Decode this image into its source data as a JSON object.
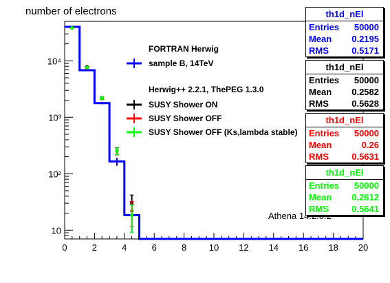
{
  "chart_data": {
    "type": "histogram",
    "title": "number of electrons",
    "x_range": [
      0,
      20
    ],
    "y_range": [
      7,
      50000
    ],
    "y_scale": "log",
    "x_ticks": [
      "0",
      "2",
      "4",
      "6",
      "8",
      "10",
      "12",
      "14",
      "16",
      "18",
      "20"
    ],
    "y_tick_labels": [
      "10",
      "10²",
      "10³",
      "10⁴"
    ],
    "bin_width": 1,
    "series": [
      {
        "name": "sample B, 14TeV",
        "color": "#0000ff",
        "style": "step",
        "bins": [
          0,
          1,
          2,
          3,
          4,
          5,
          6,
          7,
          8,
          9,
          10,
          11,
          12,
          13,
          14,
          15,
          16,
          17,
          18,
          19
        ],
        "values": [
          40000,
          6800,
          1780,
          165,
          18.5,
          0,
          0,
          0,
          0,
          0,
          0,
          0,
          0,
          0,
          0,
          0,
          0,
          0,
          0,
          0
        ]
      },
      {
        "name": "SUSY Shower ON",
        "color": "#000000",
        "style": "points",
        "x": [
          0.5,
          1.5,
          2.5,
          3.5,
          4.5
        ],
        "y": [
          38500,
          7800,
          2200,
          255,
          30
        ]
      },
      {
        "name": "SUSY Shower OFF",
        "color": "#ff0000",
        "style": "points",
        "x": [
          0.5,
          1.5,
          2.5,
          3.5,
          4.5
        ],
        "y": [
          38000,
          7500,
          2150,
          250,
          22
        ]
      },
      {
        "name": "SUSY Shower OFF (Ks,lambda stable)",
        "color": "#00ff00",
        "style": "points",
        "x": [
          0.5,
          1.5,
          2.5,
          3.5,
          4.5
        ],
        "y": [
          38200,
          7600,
          2180,
          252,
          18.5
        ]
      }
    ],
    "legend": {
      "group1_header": "FORTRAN Herwig",
      "group2_header": "Herwig++ 2.2.1, ThePEG 1.3.0",
      "entries": [
        "sample B, 14TeV",
        "SUSY Shower ON",
        "SUSY Shower OFF",
        "SUSY Shower OFF (Ks,lambda stable)"
      ]
    },
    "annotation": "Athena 14.2.0.2",
    "stat_boxes": [
      {
        "title": "th1d_nEl",
        "color": "#0000ff",
        "entries": "50000",
        "mean": "0.2195",
        "rms": "0.5171"
      },
      {
        "title": "th1d_nEl",
        "color": "#000000",
        "entries": "50000",
        "mean": "0.2582",
        "rms": "0.5628"
      },
      {
        "title": "th1d_nEl",
        "color": "#ff0000",
        "entries": "50000",
        "mean": "0.26",
        "rms": "0.5631"
      },
      {
        "title": "th1d_nEl",
        "color": "#00ff00",
        "entries": "50000",
        "mean": "0.2612",
        "rms": "0.5641"
      }
    ],
    "stat_labels": {
      "entries": "Entries",
      "mean": "Mean",
      "rms": "RMS"
    }
  }
}
